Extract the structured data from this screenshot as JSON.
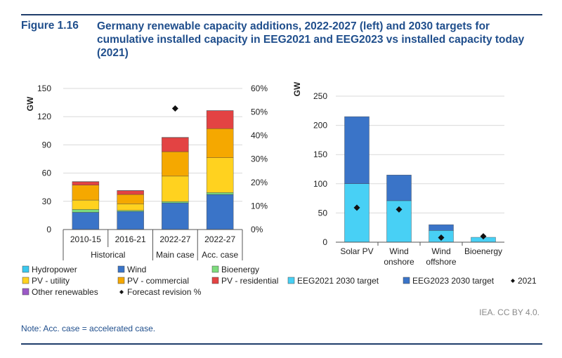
{
  "figure": {
    "label": "Figure 1.16",
    "title": "Germany renewable capacity additions, 2022-2027 (left) and 2030 targets for cumulative installed capacity in EEG2021 and EEG2023 vs installed capacity today (2021)",
    "credit": "IEA. CC BY 4.0.",
    "note": "Note: Acc. case = accelerated case."
  },
  "colors": {
    "hydropower": "#3ac8ee",
    "wind": "#3a74c8",
    "bioenergy": "#7ddc7d",
    "pv_utility": "#ffd21f",
    "pv_commercial": "#f5a800",
    "pv_residential": "#e34343",
    "other_renewables": "#9b59c7",
    "eeg2021": "#48d0f5",
    "eeg2023": "#3a74c8",
    "grid": "#d9d9d9",
    "axis": "#555555"
  },
  "chart_data": [
    {
      "type": "bar",
      "stacked": true,
      "categories": [
        "2010-15",
        "2016-21",
        "2022-27",
        "2022-27"
      ],
      "groups": [
        {
          "label": "Historical",
          "span": [
            0,
            1
          ]
        },
        {
          "label": "Main case",
          "span": [
            2,
            2
          ]
        },
        {
          "label": "Acc. case",
          "span": [
            3,
            3
          ]
        }
      ],
      "series": [
        {
          "name": "Hydropower",
          "color_key": "hydropower",
          "values": [
            0.3,
            0.3,
            0.3,
            0.3
          ]
        },
        {
          "name": "Wind",
          "color_key": "wind",
          "values": [
            18,
            19,
            28,
            37
          ]
        },
        {
          "name": "Bioenergy",
          "color_key": "bioenergy",
          "values": [
            3,
            1,
            1.5,
            2
          ]
        },
        {
          "name": "PV - utility",
          "color_key": "pv_utility",
          "values": [
            10,
            7,
            27,
            37
          ]
        },
        {
          "name": "PV - commercial",
          "color_key": "pv_commercial",
          "values": [
            16,
            10,
            26,
            31
          ]
        },
        {
          "name": "PV - residential",
          "color_key": "pv_residential",
          "values": [
            3.5,
            4,
            15,
            19
          ]
        },
        {
          "name": "Other renewables",
          "color_key": "other_renewables",
          "values": [
            0.2,
            0.2,
            0.2,
            0.2
          ]
        }
      ],
      "secondary_series": {
        "name": "Forecast revision %",
        "values": [
          null,
          null,
          51.5,
          null
        ]
      },
      "ylabel": "GW",
      "ylim": [
        0,
        150
      ],
      "yticks": [
        0,
        30,
        60,
        90,
        120,
        150
      ],
      "y2lim": [
        0,
        60
      ],
      "y2ticks": [
        "0%",
        "10%",
        "20%",
        "30%",
        "40%",
        "50%",
        "60%"
      ],
      "legend_position": "bottom",
      "grid": true
    },
    {
      "type": "bar",
      "stacked": true,
      "categories": [
        "Solar PV",
        "Wind onshore",
        "Wind offshore",
        "Bioenergy"
      ],
      "category_lines": [
        [
          "Solar PV"
        ],
        [
          "Wind",
          "onshore"
        ],
        [
          "Wind",
          "offshore"
        ],
        [
          "Bioenergy"
        ]
      ],
      "series": [
        {
          "name": "EEG2021 2030 target",
          "color_key": "eeg2021",
          "values": [
            100,
            71,
            20,
            8.4
          ]
        },
        {
          "name": "EEG2023 2030 target",
          "color_key": "eeg2023",
          "values": [
            115,
            44,
            10,
            0
          ]
        }
      ],
      "points": {
        "name": "2021",
        "values": [
          59,
          56,
          7.8,
          10
        ]
      },
      "ylabel": "GW",
      "ylim": [
        0,
        250
      ],
      "yticks": [
        0,
        50,
        100,
        150,
        200,
        250
      ],
      "legend_position": "bottom",
      "grid": true
    }
  ]
}
